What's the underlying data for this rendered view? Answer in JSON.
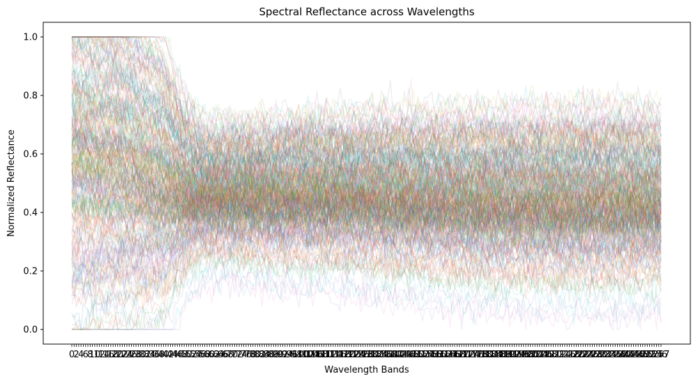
{
  "chart_data": {
    "type": "line",
    "title": "Spectral Reflectance across Wavelengths",
    "xlabel": "Wavelength Bands",
    "ylabel": "Normalized Reflectance",
    "ylim": [
      -0.05,
      1.05
    ],
    "yticks": [
      "0.0",
      "0.2",
      "0.4",
      "0.6",
      "0.8",
      "1.0"
    ],
    "x_first_tick": "0",
    "x_last_tick": "257",
    "n_bands": 258,
    "grid": false,
    "legend": "none",
    "line_alpha": 0.12,
    "colors": [
      "#1f77b4",
      "#ff7f0e",
      "#2ca02c",
      "#d62728",
      "#9467bd",
      "#8c564b",
      "#e377c2",
      "#7f7f7f",
      "#bcbd22",
      "#17becf"
    ],
    "summary_profile": {
      "note_free": true,
      "band_index": [
        0,
        20,
        40,
        50,
        60,
        80,
        100,
        120,
        150,
        180,
        210,
        240,
        257
      ],
      "upper_envelope": [
        1.0,
        1.0,
        0.92,
        0.72,
        0.66,
        0.68,
        0.7,
        0.7,
        0.7,
        0.7,
        0.69,
        0.68,
        0.66
      ],
      "mean_reflectance": [
        0.6,
        0.58,
        0.52,
        0.48,
        0.47,
        0.47,
        0.47,
        0.47,
        0.46,
        0.45,
        0.45,
        0.45,
        0.45
      ],
      "lower_envelope": [
        0.15,
        0.15,
        0.2,
        0.27,
        0.3,
        0.3,
        0.3,
        0.29,
        0.26,
        0.24,
        0.22,
        0.2,
        0.2
      ]
    }
  }
}
